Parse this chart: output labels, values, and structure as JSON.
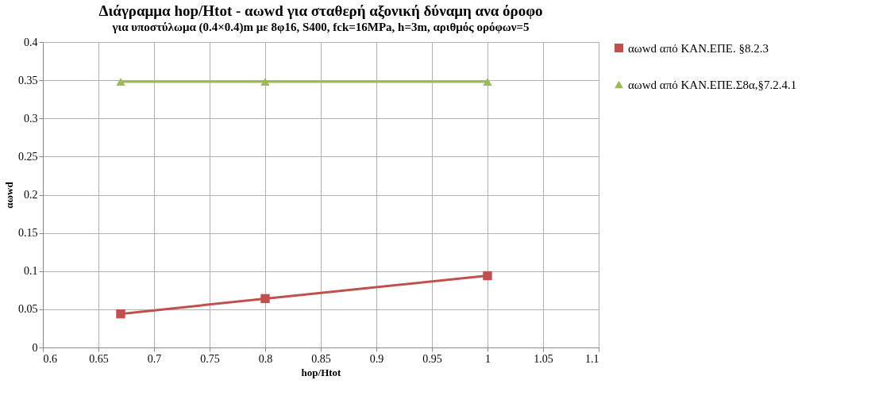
{
  "chart_data": {
    "type": "line",
    "title": "Διάγραμμα hop/Htot - αωwd για σταθερή αξονική δύναμη ανα όροφο",
    "subtitle": "για υποστύλωμα (0.4×0.4)m με 8φ16, S400, fck=16MPa, h=3m, αριθμός ορόφων=5",
    "xlabel": "hop/Htot",
    "ylabel": "αωwd",
    "x": [
      0.67,
      0.8,
      1.0
    ],
    "series": [
      {
        "name": "αωwd από ΚΑΝ.ΕΠΕ. §8.2.3",
        "color": "#c0504d",
        "marker": "square",
        "values": [
          0.044,
          0.064,
          0.094
        ]
      },
      {
        "name": "αωwd από ΚΑΝ.ΕΠΕ.Σ8α,§7.2.4.1",
        "color": "#9bbb59",
        "marker": "triangle",
        "values": [
          0.348,
          0.348,
          0.348
        ]
      }
    ],
    "xlim": [
      0.6,
      1.1
    ],
    "xticks": [
      0.6,
      0.65,
      0.7,
      0.75,
      0.8,
      0.85,
      0.9,
      0.95,
      1,
      1.05,
      1.1
    ],
    "ylim": [
      0,
      0.4
    ],
    "yticks": [
      0,
      0.05,
      0.1,
      0.15,
      0.2,
      0.25,
      0.3,
      0.35,
      0.4
    ],
    "grid": true,
    "legend": "right",
    "line_style": "solid"
  }
}
